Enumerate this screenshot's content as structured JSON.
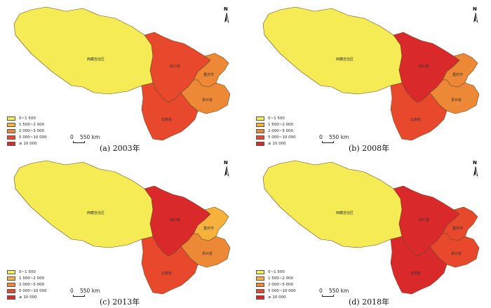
{
  "colors": {
    "c1": "#f5ec55",
    "c2": "#f6b23c",
    "c3": "#ed8836",
    "c4": "#e8482c",
    "c5": "#d9292b",
    "border": "#6b4a2a"
  },
  "legend": [
    {
      "label": "0~1 500",
      "color_key": "c1"
    },
    {
      "label": "1 500~2 000",
      "color_key": "c2"
    },
    {
      "label": "2 000~5 000",
      "color_key": "c3"
    },
    {
      "label": "5 000~10 000",
      "color_key": "c4"
    },
    {
      "label": "≥ 10 000",
      "color_key": "c5"
    }
  ],
  "scale": {
    "zero": "0",
    "distance": "550 km"
  },
  "north_label": "N",
  "provinces": {
    "tibet": "西藏自治区",
    "sichuan": "四川省",
    "chongqing": "重庆市",
    "guizhou": "贵州省",
    "yunnan": "云南省"
  },
  "panels": [
    {
      "caption": "(a) 2003年",
      "fills": {
        "tibet": "c1",
        "sichuan": "c4",
        "chongqing": "c3",
        "guizhou": "c3",
        "yunnan": "c4"
      }
    },
    {
      "caption": "(b) 2008年",
      "fills": {
        "tibet": "c1",
        "sichuan": "c5",
        "chongqing": "c3",
        "guizhou": "c3",
        "yunnan": "c4"
      }
    },
    {
      "caption": "(c) 2013年",
      "fills": {
        "tibet": "c1",
        "sichuan": "c5",
        "chongqing": "c2",
        "guizhou": "c3",
        "yunnan": "c4"
      }
    },
    {
      "caption": "(d) 2018年",
      "fills": {
        "tibet": "c1",
        "sichuan": "c5",
        "chongqing": "c4",
        "guizhou": "c4",
        "yunnan": "c5"
      }
    }
  ]
}
